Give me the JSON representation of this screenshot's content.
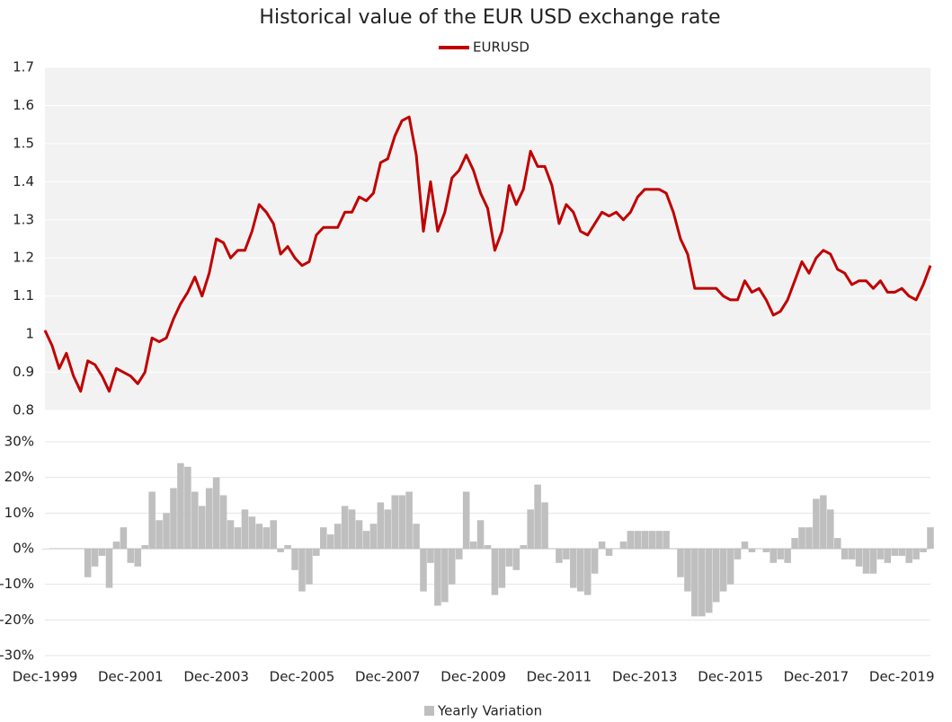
{
  "chart_data": [
    {
      "type": "line",
      "title": "Historical value of the EUR USD  exchange rate",
      "x": [
        "1999-12",
        "2000-02",
        "2000-04",
        "2000-06",
        "2000-08",
        "2000-10",
        "2000-12",
        "2001-02",
        "2001-04",
        "2001-06",
        "2001-08",
        "2001-10",
        "2001-12",
        "2002-02",
        "2002-04",
        "2002-06",
        "2002-08",
        "2002-10",
        "2002-12",
        "2003-02",
        "2003-04",
        "2003-06",
        "2003-08",
        "2003-10",
        "2003-12",
        "2004-02",
        "2004-04",
        "2004-06",
        "2004-08",
        "2004-10",
        "2004-12",
        "2005-02",
        "2005-04",
        "2005-06",
        "2005-08",
        "2005-10",
        "2005-12",
        "2006-02",
        "2006-04",
        "2006-06",
        "2006-08",
        "2006-10",
        "2006-12",
        "2007-02",
        "2007-04",
        "2007-06",
        "2007-08",
        "2007-10",
        "2007-12",
        "2008-02",
        "2008-04",
        "2008-06",
        "2008-08",
        "2008-10",
        "2008-12",
        "2009-02",
        "2009-04",
        "2009-06",
        "2009-08",
        "2009-10",
        "2009-12",
        "2010-02",
        "2010-04",
        "2010-06",
        "2010-08",
        "2010-10",
        "2010-12",
        "2011-02",
        "2011-04",
        "2011-06",
        "2011-08",
        "2011-10",
        "2011-12",
        "2012-02",
        "2012-04",
        "2012-06",
        "2012-08",
        "2012-10",
        "2012-12",
        "2013-02",
        "2013-04",
        "2013-06",
        "2013-08",
        "2013-10",
        "2013-12",
        "2014-02",
        "2014-04",
        "2014-06",
        "2014-08",
        "2014-10",
        "2014-12",
        "2015-02",
        "2015-04",
        "2015-06",
        "2015-08",
        "2015-10",
        "2015-12",
        "2016-02",
        "2016-04",
        "2016-06",
        "2016-08",
        "2016-10",
        "2016-12",
        "2017-02",
        "2017-04",
        "2017-06",
        "2017-08",
        "2017-10",
        "2017-12",
        "2018-02",
        "2018-04",
        "2018-06",
        "2018-08",
        "2018-10",
        "2018-12",
        "2019-02",
        "2019-04",
        "2019-06",
        "2019-08",
        "2019-10",
        "2019-12",
        "2020-02",
        "2020-04",
        "2020-06",
        "2020-08"
      ],
      "series": [
        {
          "name": "EURUSD",
          "color": "#c00000",
          "values": [
            1.01,
            0.97,
            0.91,
            0.95,
            0.89,
            0.85,
            0.93,
            0.92,
            0.89,
            0.85,
            0.91,
            0.9,
            0.89,
            0.87,
            0.9,
            0.99,
            0.98,
            0.99,
            1.04,
            1.08,
            1.11,
            1.15,
            1.1,
            1.16,
            1.25,
            1.24,
            1.2,
            1.22,
            1.22,
            1.27,
            1.34,
            1.32,
            1.29,
            1.21,
            1.23,
            1.2,
            1.18,
            1.19,
            1.26,
            1.28,
            1.28,
            1.28,
            1.32,
            1.32,
            1.36,
            1.35,
            1.37,
            1.45,
            1.46,
            1.52,
            1.56,
            1.57,
            1.47,
            1.27,
            1.4,
            1.27,
            1.32,
            1.41,
            1.43,
            1.47,
            1.43,
            1.37,
            1.33,
            1.22,
            1.27,
            1.39,
            1.34,
            1.38,
            1.48,
            1.44,
            1.44,
            1.39,
            1.29,
            1.34,
            1.32,
            1.27,
            1.26,
            1.29,
            1.32,
            1.31,
            1.32,
            1.3,
            1.32,
            1.36,
            1.38,
            1.38,
            1.38,
            1.37,
            1.32,
            1.25,
            1.21,
            1.12,
            1.12,
            1.12,
            1.12,
            1.1,
            1.09,
            1.09,
            1.14,
            1.11,
            1.12,
            1.09,
            1.05,
            1.06,
            1.09,
            1.14,
            1.19,
            1.16,
            1.2,
            1.22,
            1.21,
            1.17,
            1.16,
            1.13,
            1.14,
            1.14,
            1.12,
            1.14,
            1.11,
            1.11,
            1.12,
            1.1,
            1.09,
            1.13,
            1.18
          ]
        }
      ],
      "xlim": [
        "1999-12",
        "2020-08"
      ],
      "ylim": [
        0.8,
        1.7
      ],
      "yticks": [
        0.8,
        0.9,
        1,
        1.1,
        1.2,
        1.3,
        1.4,
        1.5,
        1.6,
        1.7
      ],
      "grid": true,
      "legend": "top"
    },
    {
      "type": "bar",
      "x": [
        "1999-12",
        "2000-02",
        "2000-04",
        "2000-06",
        "2000-08",
        "2000-10",
        "2000-12",
        "2001-02",
        "2001-04",
        "2001-06",
        "2001-08",
        "2001-10",
        "2001-12",
        "2002-02",
        "2002-04",
        "2002-06",
        "2002-08",
        "2002-10",
        "2002-12",
        "2003-02",
        "2003-04",
        "2003-06",
        "2003-08",
        "2003-10",
        "2003-12",
        "2004-02",
        "2004-04",
        "2004-06",
        "2004-08",
        "2004-10",
        "2004-12",
        "2005-02",
        "2005-04",
        "2005-06",
        "2005-08",
        "2005-10",
        "2005-12",
        "2006-02",
        "2006-04",
        "2006-06",
        "2006-08",
        "2006-10",
        "2006-12",
        "2007-02",
        "2007-04",
        "2007-06",
        "2007-08",
        "2007-10",
        "2007-12",
        "2008-02",
        "2008-04",
        "2008-06",
        "2008-08",
        "2008-10",
        "2008-12",
        "2009-02",
        "2009-04",
        "2009-06",
        "2009-08",
        "2009-10",
        "2009-12",
        "2010-02",
        "2010-04",
        "2010-06",
        "2010-08",
        "2010-10",
        "2010-12",
        "2011-02",
        "2011-04",
        "2011-06",
        "2011-08",
        "2011-10",
        "2011-12",
        "2012-02",
        "2012-04",
        "2012-06",
        "2012-08",
        "2012-10",
        "2012-12",
        "2013-02",
        "2013-04",
        "2013-06",
        "2013-08",
        "2013-10",
        "2013-12",
        "2014-02",
        "2014-04",
        "2014-06",
        "2014-08",
        "2014-10",
        "2014-12",
        "2015-02",
        "2015-04",
        "2015-06",
        "2015-08",
        "2015-10",
        "2015-12",
        "2016-02",
        "2016-04",
        "2016-06",
        "2016-08",
        "2016-10",
        "2016-12",
        "2017-02",
        "2017-04",
        "2017-06",
        "2017-08",
        "2017-10",
        "2017-12",
        "2018-02",
        "2018-04",
        "2018-06",
        "2018-08",
        "2018-10",
        "2018-12",
        "2019-02",
        "2019-04",
        "2019-06",
        "2019-08",
        "2019-10",
        "2019-12",
        "2020-02",
        "2020-04",
        "2020-06",
        "2020-08"
      ],
      "series": [
        {
          "name": "Yearly Variation",
          "color": "#bfbfbf",
          "values": [
            0,
            0,
            0,
            0,
            0,
            0,
            -8,
            -5,
            -2,
            -11,
            2,
            6,
            -4,
            -5,
            1,
            16,
            8,
            10,
            17,
            24,
            23,
            16,
            12,
            17,
            20,
            15,
            8,
            6,
            11,
            9,
            7,
            6,
            8,
            -1,
            1,
            -6,
            -12,
            -10,
            -2,
            6,
            4,
            7,
            12,
            11,
            8,
            5,
            7,
            13,
            11,
            15,
            15,
            16,
            7,
            -12,
            -4,
            -16,
            -15,
            -10,
            -3,
            16,
            2,
            8,
            1,
            -13,
            -11,
            -5,
            -6,
            1,
            11,
            18,
            13,
            0,
            -4,
            -3,
            -11,
            -12,
            -13,
            -7,
            2,
            -2,
            0,
            2,
            5,
            5,
            5,
            5,
            5,
            5,
            0,
            -8,
            -12,
            -19,
            -19,
            -18,
            -15,
            -12,
            -10,
            -3,
            2,
            -1,
            0,
            -1,
            -4,
            -3,
            -4,
            3,
            6,
            6,
            14,
            15,
            11,
            3,
            -3,
            -3,
            -5,
            -7,
            -7,
            -3,
            -4,
            -2,
            -2,
            -4,
            -3,
            -1,
            6
          ]
        }
      ],
      "xlim": [
        "1999-12",
        "2020-08"
      ],
      "xticks": [
        {
          "value": "1999-12",
          "label": "Dec-1999"
        },
        {
          "value": "2001-12",
          "label": "Dec-2001"
        },
        {
          "value": "2003-12",
          "label": "Dec-2003"
        },
        {
          "value": "2005-12",
          "label": "Dec-2005"
        },
        {
          "value": "2007-12",
          "label": "Dec-2007"
        },
        {
          "value": "2009-12",
          "label": "Dec-2009"
        },
        {
          "value": "2011-12",
          "label": "Dec-2011"
        },
        {
          "value": "2013-12",
          "label": "Dec-2013"
        },
        {
          "value": "2015-12",
          "label": "Dec-2015"
        },
        {
          "value": "2017-12",
          "label": "Dec-2017"
        },
        {
          "value": "2019-12",
          "label": "Dec-2019"
        }
      ],
      "ylim": [
        -30,
        30
      ],
      "yticks": [
        {
          "value": -30,
          "label": "-30%"
        },
        {
          "value": -20,
          "label": "-20%"
        },
        {
          "value": -10,
          "label": "-10%"
        },
        {
          "value": 0,
          "label": "0%"
        },
        {
          "value": 10,
          "label": "10%"
        },
        {
          "value": 20,
          "label": "20%"
        },
        {
          "value": 30,
          "label": "30%"
        }
      ],
      "grid": true,
      "legend": "bottom"
    }
  ]
}
